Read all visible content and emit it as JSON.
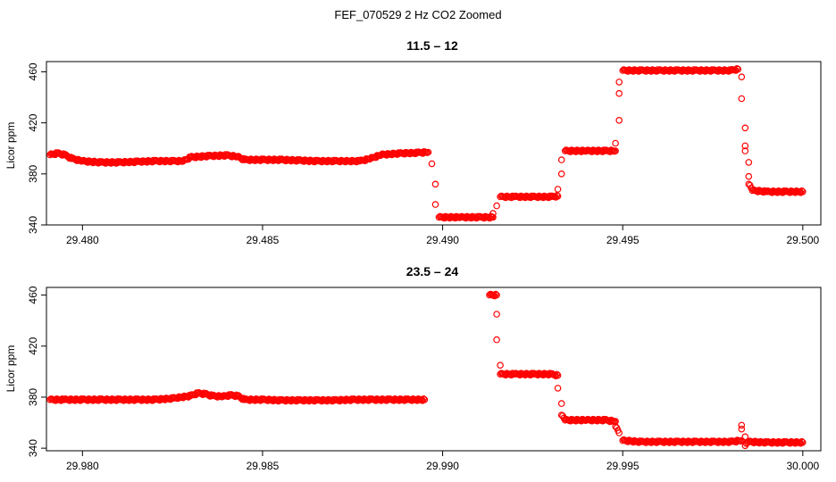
{
  "figure_title": "FEF_070529  2 Hz CO2 Zoomed",
  "chart_data": [
    {
      "type": "scatter",
      "title": "11.5 – 12",
      "xlabel": "",
      "ylabel": "Licor ppm",
      "xlim": [
        29.479,
        29.5005
      ],
      "ylim": [
        340,
        468
      ],
      "x_ticks": [
        29.48,
        29.485,
        29.49,
        29.495,
        29.5
      ],
      "x_tick_labels": [
        "29.480",
        "29.485",
        "29.490",
        "29.495",
        "29.500"
      ],
      "y_ticks": [
        340,
        380,
        420,
        460
      ],
      "y_tick_labels": [
        "340",
        "380",
        "420",
        "460"
      ],
      "marker": "open-circle",
      "color": "#ff0000",
      "series": [
        {
          "points": [
            [
              29.4791,
              395
            ],
            [
              29.4793,
              396
            ],
            [
              29.4795,
              395
            ],
            [
              29.4797,
              392
            ],
            [
              29.48,
              390
            ],
            [
              29.4805,
              389
            ],
            [
              29.481,
              389
            ],
            [
              29.4815,
              389.5
            ],
            [
              29.482,
              390
            ],
            [
              29.4825,
              390
            ],
            [
              29.4828,
              390
            ],
            [
              29.483,
              393
            ],
            [
              29.4835,
              394
            ],
            [
              29.484,
              394.5
            ],
            [
              29.4843,
              393.5
            ],
            [
              29.4845,
              391
            ],
            [
              29.485,
              391
            ],
            [
              29.4855,
              391
            ],
            [
              29.486,
              390.5
            ],
            [
              29.4865,
              390
            ],
            [
              29.487,
              390
            ],
            [
              29.4877,
              390
            ],
            [
              29.488,
              392
            ],
            [
              29.4883,
              395
            ],
            [
              29.4888,
              396
            ],
            [
              29.4893,
              396.5
            ],
            [
              29.4896,
              397
            ],
            [
              29.4897,
              388
            ],
            [
              29.4898,
              372
            ],
            [
              29.4898,
              356
            ],
            [
              29.4899,
              346
            ],
            [
              29.4905,
              346
            ],
            [
              29.491,
              346
            ],
            [
              29.4914,
              346
            ],
            [
              29.4914,
              349
            ],
            [
              29.4915,
              355
            ],
            [
              29.4916,
              362
            ],
            [
              29.492,
              362
            ],
            [
              29.4925,
              362
            ],
            [
              29.493,
              362
            ],
            [
              29.4932,
              362.5
            ],
            [
              29.4932,
              368
            ],
            [
              29.4933,
              380
            ],
            [
              29.4933,
              391
            ],
            [
              29.4934,
              398
            ],
            [
              29.494,
              398
            ],
            [
              29.4945,
              398
            ],
            [
              29.4948,
              398
            ],
            [
              29.4948,
              404
            ],
            [
              29.4949,
              422
            ],
            [
              29.4949,
              443
            ],
            [
              29.4949,
              452
            ],
            [
              29.495,
              461
            ],
            [
              29.4955,
              461
            ],
            [
              29.496,
              461
            ],
            [
              29.4965,
              461
            ],
            [
              29.497,
              461
            ],
            [
              29.4975,
              461
            ],
            [
              29.498,
              461
            ],
            [
              29.4982,
              462
            ],
            [
              29.4983,
              456
            ],
            [
              29.4983,
              439
            ],
            [
              29.4984,
              416
            ],
            [
              29.4984,
              402
            ],
            [
              29.4984,
              398
            ],
            [
              29.4985,
              389
            ],
            [
              29.4985,
              378
            ],
            [
              29.4985,
              372
            ],
            [
              29.4986,
              367
            ],
            [
              29.499,
              366
            ],
            [
              29.4995,
              366
            ],
            [
              29.5,
              366
            ]
          ]
        }
      ]
    },
    {
      "type": "scatter",
      "title": "23.5 – 24",
      "xlabel": "",
      "ylabel": "Licor ppm",
      "xlim": [
        29.979,
        30.0005
      ],
      "ylim": [
        338,
        466
      ],
      "x_ticks": [
        29.98,
        29.985,
        29.99,
        29.995,
        30.0
      ],
      "x_tick_labels": [
        "29.980",
        "29.985",
        "29.990",
        "29.995",
        "30.000"
      ],
      "y_ticks": [
        340,
        380,
        420,
        460
      ],
      "y_tick_labels": [
        "340",
        "380",
        "420",
        "460"
      ],
      "marker": "open-circle",
      "color": "#ff0000",
      "series": [
        {
          "points": [
            [
              29.9791,
              378
            ],
            [
              29.9795,
              378
            ],
            [
              29.98,
              378
            ],
            [
              29.9805,
              378
            ],
            [
              29.981,
              378
            ],
            [
              29.9815,
              378
            ],
            [
              29.982,
              378
            ],
            [
              29.9825,
              379
            ],
            [
              29.983,
              381
            ],
            [
              29.9832,
              383
            ],
            [
              29.9834,
              382.5
            ],
            [
              29.9836,
              381
            ],
            [
              29.9839,
              380.5
            ],
            [
              29.9841,
              381.5
            ],
            [
              29.9843,
              381
            ],
            [
              29.9845,
              378
            ],
            [
              29.985,
              378
            ],
            [
              29.9855,
              377.5
            ],
            [
              29.986,
              377.5
            ],
            [
              29.9865,
              377.5
            ],
            [
              29.987,
              377.5
            ],
            [
              29.9875,
              378
            ],
            [
              29.988,
              378
            ],
            [
              29.9885,
              378
            ],
            [
              29.989,
              378
            ],
            [
              29.9895,
              378
            ],
            [
              29.9913,
              460
            ],
            [
              29.9915,
              460
            ],
            [
              29.9915,
              445
            ],
            [
              29.9915,
              425
            ],
            [
              29.9916,
              405
            ],
            [
              29.9916,
              398
            ],
            [
              29.992,
              398
            ],
            [
              29.9925,
              398
            ],
            [
              29.993,
              398
            ],
            [
              29.9932,
              397
            ],
            [
              29.9932,
              387
            ],
            [
              29.9933,
              375
            ],
            [
              29.9933,
              366
            ],
            [
              29.9934,
              362
            ],
            [
              29.994,
              362
            ],
            [
              29.9945,
              362
            ],
            [
              29.9948,
              361
            ],
            [
              29.9948,
              357
            ],
            [
              29.9949,
              352
            ],
            [
              29.995,
              346
            ],
            [
              29.9955,
              345
            ],
            [
              29.996,
              345
            ],
            [
              29.9965,
              345
            ],
            [
              29.997,
              345
            ],
            [
              29.9975,
              345
            ],
            [
              29.998,
              345
            ],
            [
              29.9983,
              346
            ],
            [
              29.9983,
              358
            ],
            [
              29.9983,
              355
            ],
            [
              29.9984,
              349
            ],
            [
              29.9984,
              342
            ],
            [
              29.9985,
              345
            ],
            [
              29.999,
              344.5
            ],
            [
              29.9995,
              344.5
            ],
            [
              30.0,
              344.5
            ]
          ]
        }
      ]
    }
  ]
}
